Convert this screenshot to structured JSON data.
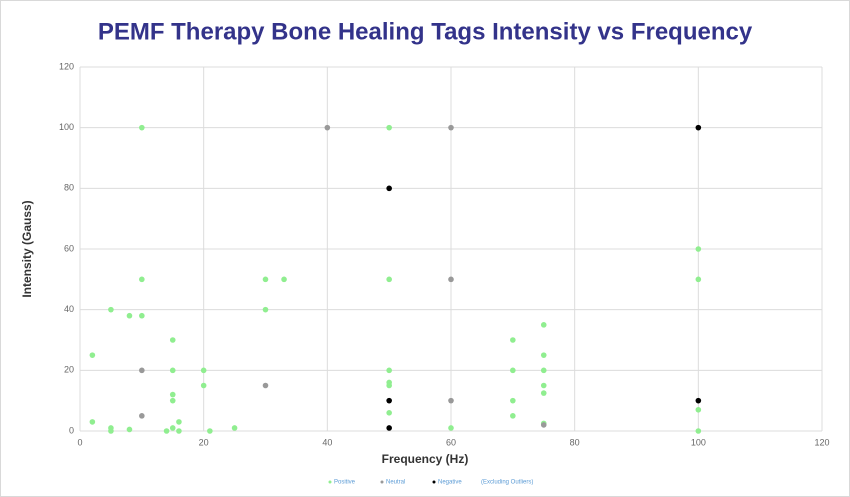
{
  "chart_data": {
    "type": "scatter",
    "title": "PEMF Therapy Bone Healing Tags Intensity vs Frequency",
    "x_label": "Frequency (Hz)",
    "y_label": "Intensity (Gauss)",
    "legend_note": "(Excluding Outliers)",
    "xlim": [
      0,
      120
    ],
    "xticks": [
      0,
      20,
      40,
      60,
      80,
      100,
      120
    ],
    "ylim": [
      0,
      120
    ],
    "yticks": [
      0,
      20,
      40,
      60,
      80,
      100,
      120
    ],
    "grid": true,
    "legend": "bottom",
    "series": [
      {
        "name": "Positive",
        "color": "#90ee90",
        "x": [
          2,
          2,
          5,
          5,
          5,
          8,
          8,
          10,
          10,
          10,
          15,
          15,
          15,
          15,
          14,
          15,
          16,
          16,
          20,
          20,
          21,
          25,
          30,
          30,
          33,
          50,
          50,
          50,
          50,
          50,
          50,
          60,
          70,
          70,
          70,
          70,
          75,
          75,
          75,
          75,
          75,
          75,
          100,
          100,
          100,
          100
        ],
        "values": [
          25,
          3,
          40,
          1,
          0,
          38,
          0.5,
          100,
          50,
          38,
          30,
          20,
          12,
          10,
          0,
          1,
          3,
          0,
          20,
          15,
          0,
          1,
          50,
          40,
          50,
          100,
          50,
          20,
          16,
          15,
          6,
          1,
          30,
          20,
          10,
          5,
          35,
          25,
          20,
          15,
          12.5,
          2.5,
          60,
          50,
          7,
          0
        ]
      },
      {
        "name": "Neutral",
        "color": "#999999",
        "x": [
          10,
          10,
          30,
          40,
          60,
          60,
          60,
          75
        ],
        "values": [
          20,
          5,
          15,
          100,
          100,
          50,
          10,
          2
        ]
      },
      {
        "name": "Negative",
        "color": "#000000",
        "x": [
          50,
          50,
          50,
          100,
          100
        ],
        "values": [
          80,
          10,
          1,
          100,
          10
        ]
      }
    ]
  }
}
